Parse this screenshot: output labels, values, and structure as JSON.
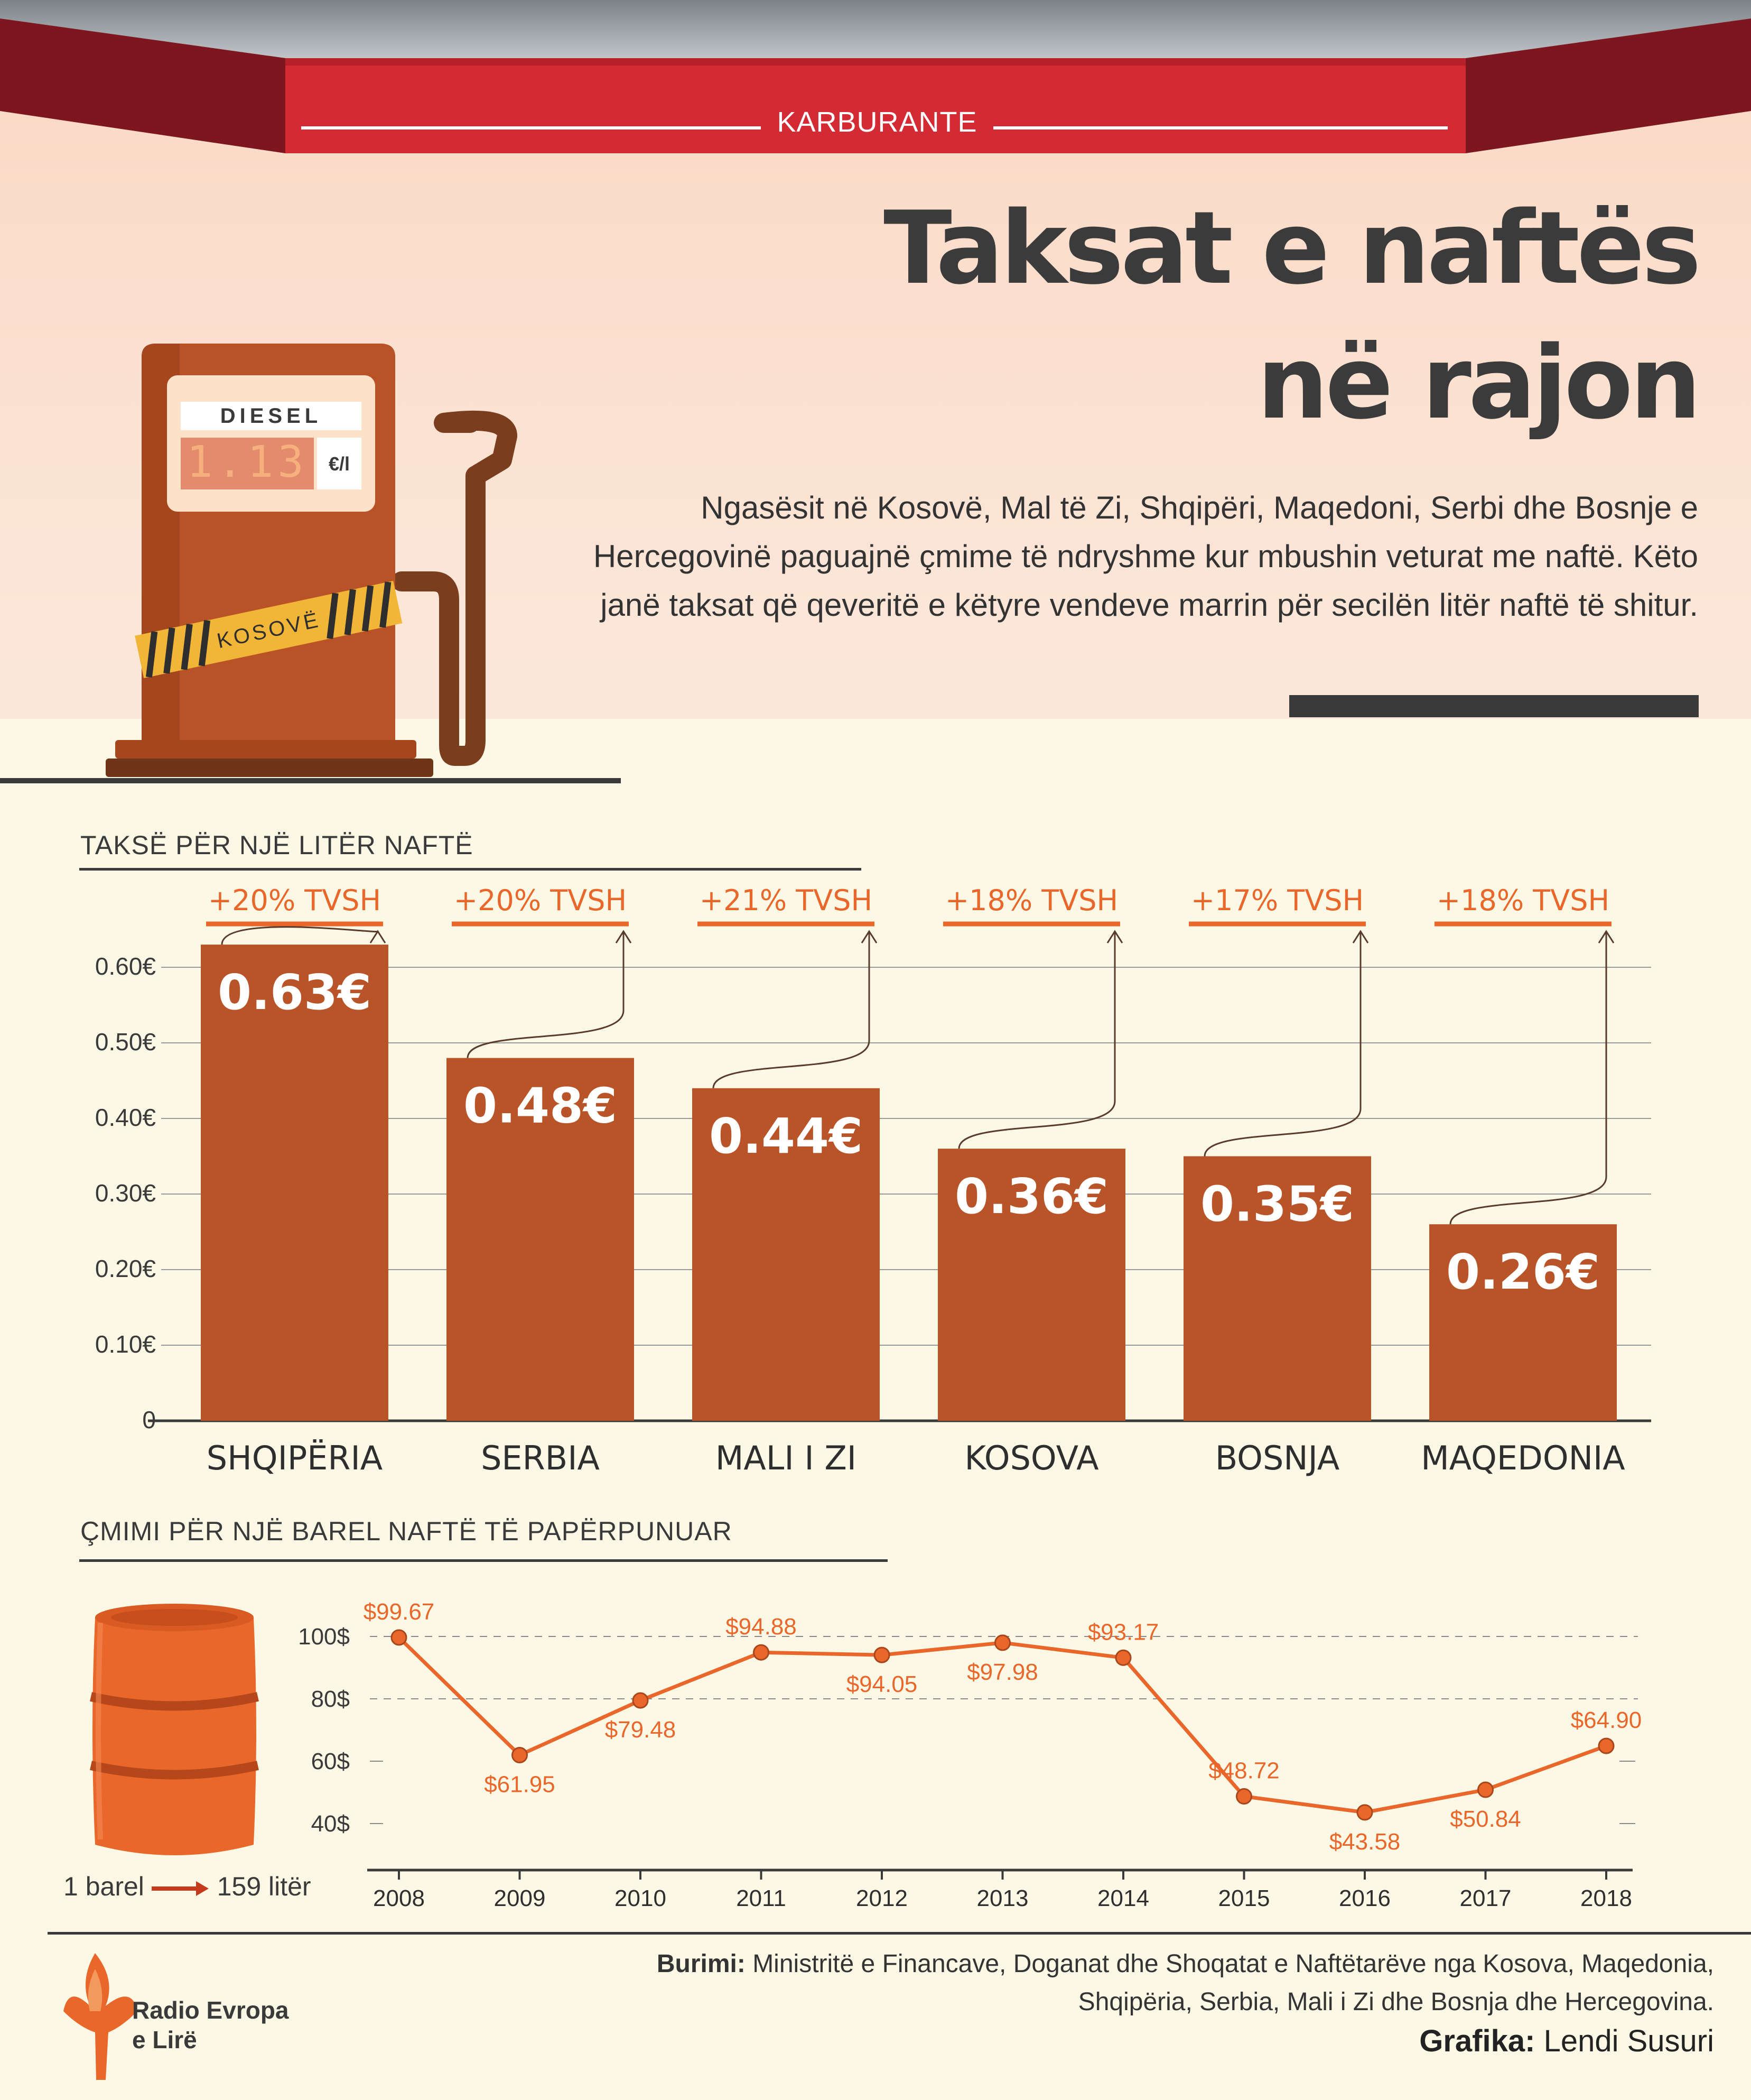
{
  "header": {
    "kicker": "KARBURANTE",
    "title_line1": "Taksat e naftës",
    "title_line2": "në rajon",
    "intro": "Ngasësit në Kosovë, Mal të Zi, Shqipëri, Maqedoni, Serbi dhe Bosnje e Hercegovinë paguajnë çmime të ndryshme kur mbushin veturat me naftë. Këto janë taksat që qeveritë e këtyre vendeve marrin për secilën litër naftë të shitur."
  },
  "pump": {
    "fuel_label": "DIESEL",
    "price": "1.13",
    "unit": "€/l",
    "tape_label": "KOSOVË"
  },
  "colors": {
    "bar": "#b85428",
    "accent": "#e9672b",
    "roof_red": "#d42a34",
    "dark": "#3a3a3a"
  },
  "chart_data": [
    {
      "type": "bar",
      "title": "TAKSË PËR NJË LITËR NAFTË",
      "categories": [
        "SHQIPËRIA",
        "SERBIA",
        "MALI I ZI",
        "KOSOVA",
        "BOSNJA",
        "MAQEDONIA"
      ],
      "values": [
        0.63,
        0.48,
        0.44,
        0.36,
        0.35,
        0.26
      ],
      "value_labels": [
        "0.63€",
        "0.48€",
        "0.44€",
        "0.36€",
        "0.35€",
        "0.26€"
      ],
      "vat_labels": [
        "+20% TVSH",
        "+20% TVSH",
        "+21% TVSH",
        "+18% TVSH",
        "+17% TVSH",
        "+18% TVSH"
      ],
      "y_ticks": [
        0,
        0.1,
        0.2,
        0.3,
        0.4,
        0.5,
        0.6
      ],
      "y_tick_labels": [
        "0",
        "0.10€",
        "0.20€",
        "0.30€",
        "0.40€",
        "0.50€",
        "0.60€"
      ],
      "ylim": [
        0,
        0.66
      ],
      "grid": true
    },
    {
      "type": "line",
      "title": "ÇMIMI PËR NJË BAREL NAFTË TË PAPËRPUNUAR",
      "x": [
        "2008",
        "2009",
        "2010",
        "2011",
        "2012",
        "2013",
        "2014",
        "2015",
        "2016",
        "2017",
        "2018"
      ],
      "y": [
        99.67,
        61.95,
        79.48,
        94.88,
        94.05,
        97.98,
        93.17,
        48.72,
        43.58,
        50.84,
        64.9
      ],
      "point_labels": [
        "$99.67",
        "$61.95",
        "$79.48",
        "$94.88",
        "$94.05",
        "$97.98",
        "$93.17",
        "$48.72",
        "$43.58",
        "$50.84",
        "$64.90"
      ],
      "y_ticks": [
        40,
        60,
        80,
        100
      ],
      "y_tick_labels": [
        "40$",
        "60$",
        "80$",
        "100$"
      ],
      "ylim": [
        30,
        108
      ],
      "grid": true
    }
  ],
  "barrel": {
    "caption_left": "1 barel",
    "caption_right": "159 litër"
  },
  "footer": {
    "source_label": "Burimi:",
    "source_text": "Ministritë e Financave, Doganat dhe Shoqatat e Naftëtarëve nga Kosova, Maqedonia, Shqipëria, Serbia, Mali i Zi dhe Bosnja dhe Hercegovina.",
    "credit_label": "Grafika:",
    "credit_name": "Lendi Susuri",
    "logo_line1": "Radio Evropa",
    "logo_line2": "e Lirë"
  }
}
